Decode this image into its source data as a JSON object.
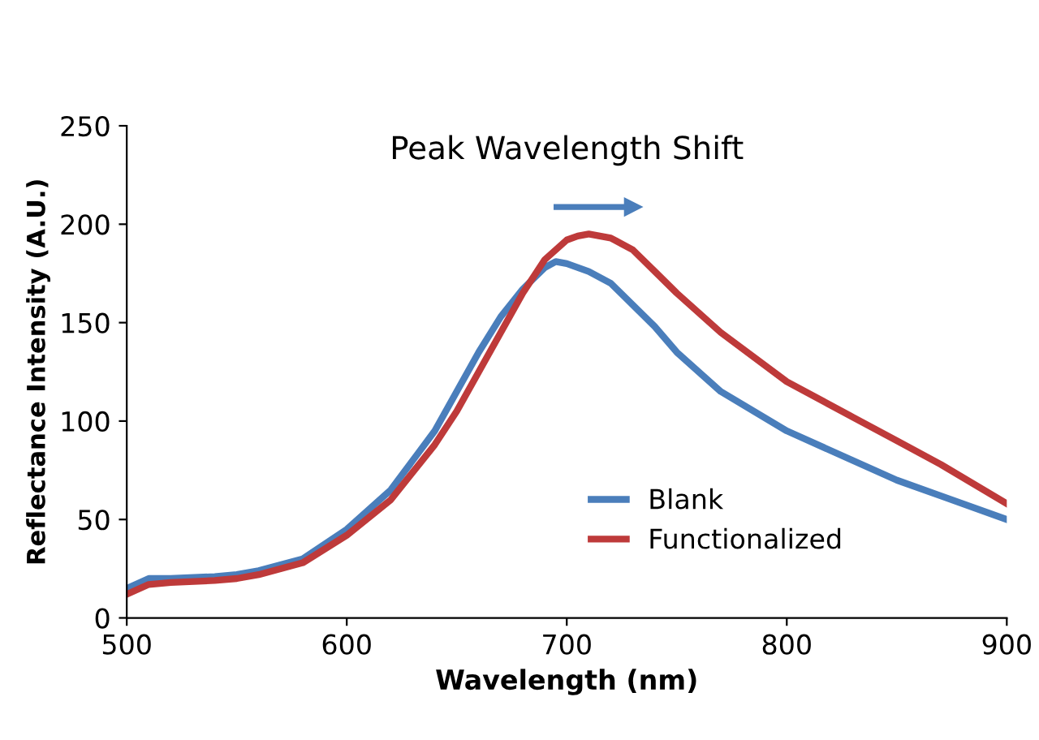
{
  "chart_data": {
    "type": "line",
    "xlabel": "Wavelength (nm)",
    "ylabel": "Reflectance Intensity (A.U.)",
    "annotations": [
      "Peak Wavelength Shift"
    ],
    "xlim": [
      500,
      900
    ],
    "ylim": [
      0,
      250
    ],
    "xticks": [
      500,
      600,
      700,
      800,
      900
    ],
    "yticks": [
      0,
      50,
      100,
      150,
      200,
      250
    ],
    "grid": false,
    "legend": "bottom",
    "marker": "none",
    "line_style": "solid",
    "series": [
      {
        "name": "Blank",
        "color": "#4a7ebb",
        "x": [
          500,
          510,
          520,
          540,
          550,
          560,
          580,
          600,
          620,
          640,
          650,
          660,
          670,
          680,
          690,
          695,
          700,
          710,
          720,
          740,
          750,
          770,
          800,
          830,
          850,
          870,
          900
        ],
        "values": [
          15,
          20,
          20,
          21,
          22,
          24,
          30,
          45,
          65,
          95,
          115,
          135,
          153,
          167,
          178,
          181,
          180,
          176,
          170,
          148,
          135,
          115,
          95,
          80,
          70,
          62,
          50
        ]
      },
      {
        "name": "Functionalized",
        "color": "#be3a3a",
        "x": [
          500,
          510,
          520,
          540,
          550,
          560,
          580,
          600,
          620,
          640,
          650,
          660,
          670,
          680,
          690,
          700,
          705,
          710,
          720,
          730,
          740,
          750,
          770,
          800,
          830,
          850,
          870,
          900
        ],
        "values": [
          12,
          17,
          18,
          19,
          20,
          22,
          28,
          42,
          60,
          88,
          105,
          125,
          145,
          165,
          182,
          192,
          194,
          195,
          193,
          187,
          176,
          165,
          145,
          120,
          102,
          90,
          78,
          58
        ]
      }
    ]
  }
}
